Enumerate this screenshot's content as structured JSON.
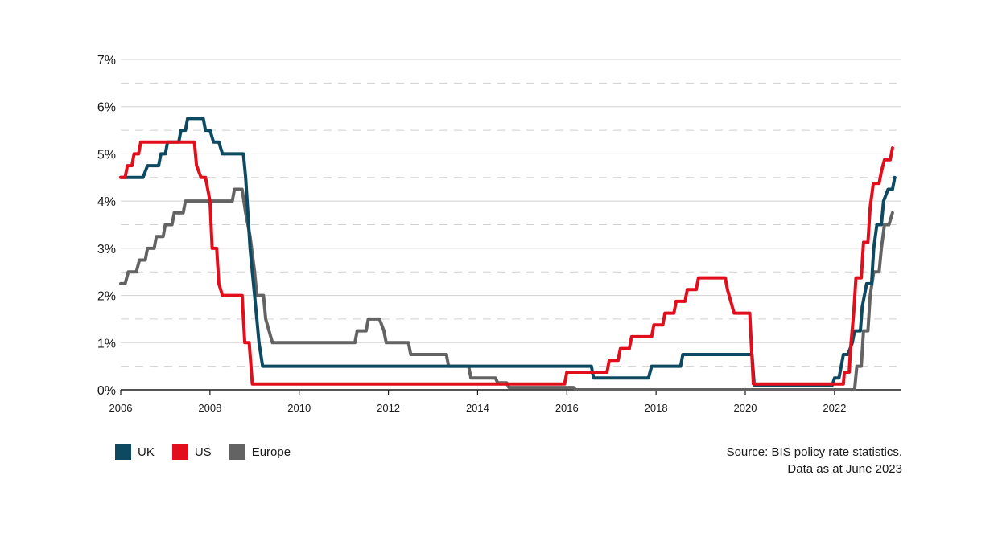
{
  "chart_data": {
    "type": "line",
    "xlim": [
      2006.0,
      2023.5
    ],
    "ylim": [
      0,
      7
    ],
    "x_ticks": [
      "2006",
      "2008",
      "2010",
      "2012",
      "2014",
      "2016",
      "2018",
      "2020",
      "2022"
    ],
    "y_ticks": [
      "0%",
      "1%",
      "2%",
      "3%",
      "4%",
      "5%",
      "6%",
      "7%"
    ],
    "grid": true,
    "legend_position": "bottom-left",
    "colors": {
      "UK": "#0d4a61",
      "US": "#e30e1b",
      "Europe": "#636363",
      "grid": "#d0d0d0"
    },
    "series": [
      {
        "name": "UK",
        "points": [
          [
            2006.0,
            4.5
          ],
          [
            2006.5,
            4.5
          ],
          [
            2006.6,
            4.75
          ],
          [
            2006.85,
            4.75
          ],
          [
            2006.9,
            5.0
          ],
          [
            2007.0,
            5.0
          ],
          [
            2007.05,
            5.25
          ],
          [
            2007.3,
            5.25
          ],
          [
            2007.35,
            5.5
          ],
          [
            2007.45,
            5.5
          ],
          [
            2007.5,
            5.75
          ],
          [
            2007.85,
            5.75
          ],
          [
            2007.9,
            5.5
          ],
          [
            2008.0,
            5.5
          ],
          [
            2008.08,
            5.25
          ],
          [
            2008.2,
            5.25
          ],
          [
            2008.28,
            5.0
          ],
          [
            2008.75,
            5.0
          ],
          [
            2008.8,
            4.5
          ],
          [
            2008.9,
            3.0
          ],
          [
            2009.0,
            2.0
          ],
          [
            2009.05,
            1.5
          ],
          [
            2009.1,
            1.0
          ],
          [
            2009.18,
            0.5
          ],
          [
            2016.55,
            0.5
          ],
          [
            2016.6,
            0.25
          ],
          [
            2017.83,
            0.25
          ],
          [
            2017.9,
            0.5
          ],
          [
            2018.55,
            0.5
          ],
          [
            2018.6,
            0.75
          ],
          [
            2020.15,
            0.75
          ],
          [
            2020.2,
            0.1
          ],
          [
            2021.95,
            0.1
          ],
          [
            2022.0,
            0.25
          ],
          [
            2022.1,
            0.25
          ],
          [
            2022.15,
            0.5
          ],
          [
            2022.2,
            0.75
          ],
          [
            2022.3,
            0.75
          ],
          [
            2022.4,
            1.0
          ],
          [
            2022.45,
            1.25
          ],
          [
            2022.58,
            1.25
          ],
          [
            2022.62,
            1.75
          ],
          [
            2022.72,
            2.25
          ],
          [
            2022.83,
            2.25
          ],
          [
            2022.88,
            3.0
          ],
          [
            2022.95,
            3.5
          ],
          [
            2023.05,
            3.5
          ],
          [
            2023.1,
            4.0
          ],
          [
            2023.2,
            4.25
          ],
          [
            2023.3,
            4.25
          ],
          [
            2023.35,
            4.5
          ]
        ]
      },
      {
        "name": "US",
        "points": [
          [
            2006.0,
            4.5
          ],
          [
            2006.1,
            4.5
          ],
          [
            2006.15,
            4.75
          ],
          [
            2006.25,
            4.75
          ],
          [
            2006.3,
            5.0
          ],
          [
            2006.4,
            5.0
          ],
          [
            2006.45,
            5.25
          ],
          [
            2007.65,
            5.25
          ],
          [
            2007.7,
            4.75
          ],
          [
            2007.8,
            4.5
          ],
          [
            2007.9,
            4.5
          ],
          [
            2007.95,
            4.25
          ],
          [
            2008.0,
            4.0
          ],
          [
            2008.05,
            3.0
          ],
          [
            2008.15,
            3.0
          ],
          [
            2008.2,
            2.25
          ],
          [
            2008.28,
            2.0
          ],
          [
            2008.72,
            2.0
          ],
          [
            2008.78,
            1.0
          ],
          [
            2008.88,
            1.0
          ],
          [
            2008.95,
            0.125
          ],
          [
            2015.95,
            0.125
          ],
          [
            2016.0,
            0.375
          ],
          [
            2016.9,
            0.375
          ],
          [
            2016.95,
            0.625
          ],
          [
            2017.15,
            0.625
          ],
          [
            2017.2,
            0.875
          ],
          [
            2017.4,
            0.875
          ],
          [
            2017.45,
            1.125
          ],
          [
            2017.9,
            1.125
          ],
          [
            2017.95,
            1.375
          ],
          [
            2018.15,
            1.375
          ],
          [
            2018.2,
            1.625
          ],
          [
            2018.4,
            1.625
          ],
          [
            2018.45,
            1.875
          ],
          [
            2018.65,
            1.875
          ],
          [
            2018.7,
            2.125
          ],
          [
            2018.9,
            2.125
          ],
          [
            2018.95,
            2.375
          ],
          [
            2019.55,
            2.375
          ],
          [
            2019.6,
            2.125
          ],
          [
            2019.75,
            1.625
          ],
          [
            2020.1,
            1.625
          ],
          [
            2020.18,
            0.125
          ],
          [
            2021.95,
            0.125
          ],
          [
            2022.2,
            0.125
          ],
          [
            2022.22,
            0.375
          ],
          [
            2022.33,
            0.375
          ],
          [
            2022.36,
            0.875
          ],
          [
            2022.43,
            1.625
          ],
          [
            2022.48,
            2.375
          ],
          [
            2022.6,
            2.375
          ],
          [
            2022.65,
            3.125
          ],
          [
            2022.75,
            3.125
          ],
          [
            2022.8,
            3.875
          ],
          [
            2022.87,
            4.375
          ],
          [
            2023.0,
            4.375
          ],
          [
            2023.05,
            4.625
          ],
          [
            2023.12,
            4.875
          ],
          [
            2023.25,
            4.875
          ],
          [
            2023.3,
            5.125
          ]
        ]
      },
      {
        "name": "Europe",
        "points": [
          [
            2006.0,
            2.25
          ],
          [
            2006.1,
            2.25
          ],
          [
            2006.17,
            2.5
          ],
          [
            2006.35,
            2.5
          ],
          [
            2006.42,
            2.75
          ],
          [
            2006.55,
            2.75
          ],
          [
            2006.6,
            3.0
          ],
          [
            2006.75,
            3.0
          ],
          [
            2006.8,
            3.25
          ],
          [
            2006.95,
            3.25
          ],
          [
            2007.0,
            3.5
          ],
          [
            2007.15,
            3.5
          ],
          [
            2007.2,
            3.75
          ],
          [
            2007.4,
            3.75
          ],
          [
            2007.45,
            4.0
          ],
          [
            2008.5,
            4.0
          ],
          [
            2008.55,
            4.25
          ],
          [
            2008.72,
            4.25
          ],
          [
            2008.8,
            3.75
          ],
          [
            2008.9,
            3.25
          ],
          [
            2009.0,
            2.5
          ],
          [
            2009.05,
            2.0
          ],
          [
            2009.2,
            2.0
          ],
          [
            2009.25,
            1.5
          ],
          [
            2009.4,
            1.0
          ],
          [
            2011.25,
            1.0
          ],
          [
            2011.3,
            1.25
          ],
          [
            2011.5,
            1.25
          ],
          [
            2011.55,
            1.5
          ],
          [
            2011.8,
            1.5
          ],
          [
            2011.9,
            1.25
          ],
          [
            2011.95,
            1.0
          ],
          [
            2012.45,
            1.0
          ],
          [
            2012.5,
            0.75
          ],
          [
            2013.3,
            0.75
          ],
          [
            2013.35,
            0.5
          ],
          [
            2013.8,
            0.5
          ],
          [
            2013.85,
            0.25
          ],
          [
            2014.4,
            0.25
          ],
          [
            2014.45,
            0.15
          ],
          [
            2014.65,
            0.15
          ],
          [
            2014.7,
            0.05
          ],
          [
            2016.15,
            0.05
          ],
          [
            2016.2,
            0.0
          ],
          [
            2022.45,
            0.0
          ],
          [
            2022.5,
            0.5
          ],
          [
            2022.6,
            0.5
          ],
          [
            2022.65,
            1.25
          ],
          [
            2022.75,
            1.25
          ],
          [
            2022.8,
            2.0
          ],
          [
            2022.88,
            2.5
          ],
          [
            2023.0,
            2.5
          ],
          [
            2023.05,
            3.0
          ],
          [
            2023.12,
            3.5
          ],
          [
            2023.22,
            3.5
          ],
          [
            2023.3,
            3.75
          ]
        ]
      }
    ]
  },
  "legend": {
    "items": [
      "UK",
      "US",
      "Europe"
    ]
  },
  "source": {
    "line1": "Source: BIS policy rate statistics.",
    "line2": "Data as at June 2023"
  }
}
